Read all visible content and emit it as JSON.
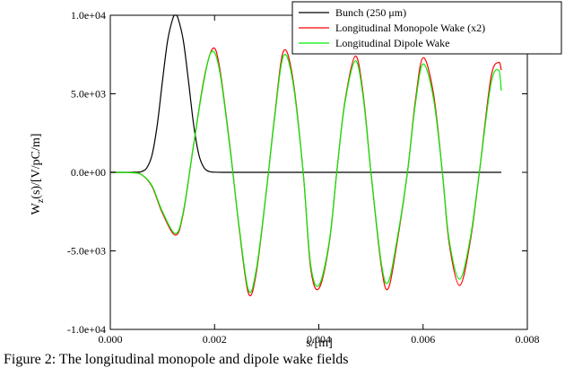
{
  "chart_data": {
    "type": "line",
    "xlabel": "s/[m]",
    "ylabel_main": "W",
    "ylabel_sub": "z",
    "ylabel_rest": "(s)/[V/pC/m]",
    "xlim": [
      0.0,
      0.008
    ],
    "ylim": [
      -10000,
      10000
    ],
    "x_ticks": [
      0.0,
      0.002,
      0.004,
      0.006,
      0.008
    ],
    "x_tick_labels": [
      "0.000",
      "0.002",
      "0.004",
      "0.006",
      "0.008"
    ],
    "y_ticks": [
      -10000,
      -5000,
      0,
      5000,
      10000
    ],
    "y_tick_labels": [
      "-1.0e+04",
      "-5.0e+03",
      "0.0e+00",
      "5.0e+03",
      "1.0e+04"
    ],
    "grid": false,
    "legend_position": "top-right",
    "series": [
      {
        "name": "Bunch (250 μm)",
        "color": "#000000",
        "x": [
          0.0,
          0.0005,
          0.0006,
          0.0007,
          0.0008,
          0.0009,
          0.001,
          0.0011,
          0.0012,
          0.00125,
          0.0013,
          0.0014,
          0.0015,
          0.0016,
          0.0017,
          0.0018,
          0.0019,
          0.002,
          0.0022,
          0.0024,
          0.003,
          0.004,
          0.005,
          0.006,
          0.0075
        ],
        "values": [
          0,
          10,
          50,
          280,
          1100,
          3000,
          5800,
          8400,
          9800,
          10000,
          9800,
          8400,
          5800,
          3000,
          1100,
          280,
          50,
          10,
          0,
          0,
          0,
          0,
          0,
          0,
          0
        ]
      },
      {
        "name": "Longitudinal Monopole Wake (x2)",
        "color": "#ff0000",
        "x": [
          0.0,
          0.0004,
          0.0006,
          0.0008,
          0.001,
          0.00125,
          0.0014,
          0.0016,
          0.0018,
          0.00197,
          0.0021,
          0.0023,
          0.00247,
          0.00265,
          0.0028,
          0.003,
          0.00315,
          0.00332,
          0.0035,
          0.0037,
          0.00384,
          0.004,
          0.0042,
          0.00435,
          0.0045,
          0.0047,
          0.00485,
          0.005,
          0.0052,
          0.00533,
          0.0055,
          0.0057,
          0.00585,
          0.006,
          0.0062,
          0.00637,
          0.0065,
          0.0067,
          0.0069,
          0.00708,
          0.0073,
          0.00745,
          0.0075
        ],
        "values": [
          0,
          -20,
          -150,
          -900,
          -2600,
          -4000,
          -2600,
          1800,
          6000,
          7900,
          6600,
          1500,
          -3500,
          -7700,
          -6400,
          -1000,
          3500,
          7700,
          6000,
          0,
          -6000,
          -7400,
          -4500,
          200,
          4500,
          7400,
          5000,
          0,
          -6000,
          -7400,
          -4500,
          0,
          4500,
          7300,
          5000,
          0,
          -4500,
          -7200,
          -4500,
          0,
          6000,
          7000,
          6500
        ]
      },
      {
        "name": "Longitudinal Dipole Wake",
        "color": "#00ee00",
        "x": [
          0.0,
          0.0004,
          0.0006,
          0.0008,
          0.001,
          0.00125,
          0.0014,
          0.0016,
          0.0018,
          0.00195,
          0.0021,
          0.0023,
          0.00247,
          0.00265,
          0.0028,
          0.003,
          0.00315,
          0.00332,
          0.0035,
          0.0037,
          0.00384,
          0.004,
          0.0042,
          0.00435,
          0.0045,
          0.0047,
          0.00485,
          0.005,
          0.0052,
          0.00533,
          0.0055,
          0.0057,
          0.00585,
          0.006,
          0.0062,
          0.00637,
          0.0065,
          0.0067,
          0.0069,
          0.00708,
          0.0073,
          0.00745,
          0.0075
        ],
        "values": [
          0,
          -20,
          -150,
          -850,
          -2500,
          -3900,
          -2500,
          1800,
          5900,
          7700,
          6400,
          1400,
          -3400,
          -7500,
          -6200,
          -1000,
          3400,
          7400,
          5800,
          0,
          -5800,
          -7200,
          -4400,
          200,
          4400,
          7100,
          4800,
          0,
          -5800,
          -7000,
          -4300,
          0,
          4300,
          6900,
          4700,
          0,
          -4300,
          -6800,
          -4300,
          0,
          5600,
          6500,
          5200
        ]
      }
    ]
  },
  "caption": "Figure 2: The longitudinal monopole and dipole wake fields"
}
